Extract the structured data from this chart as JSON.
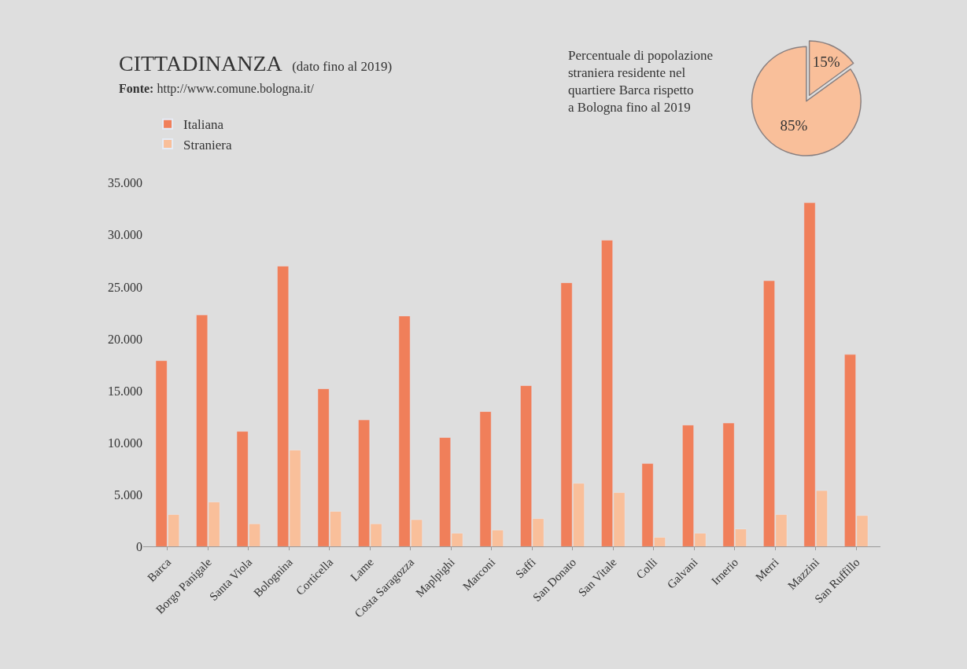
{
  "chart_data": [
    {
      "type": "bar",
      "title": "CITTADINANZA",
      "subtitle": "(dato fino al 2019)",
      "annotations": [
        "Fonte: http://www.comune.bologna.it/"
      ],
      "categories": [
        "Barca",
        "Borgo Panigale",
        "Santa Viola",
        "Bolognina",
        "Corticella",
        "Lame",
        "Costa Saragozza",
        "Maplpighi",
        "Marconi",
        "Saffi",
        "San Donato",
        "San Vitale",
        "Colli",
        "Galvani",
        "Irnerio",
        "Merri",
        "Mazzini",
        "San Ruffillo"
      ],
      "series": [
        {
          "name": "Italiana",
          "color": "#f07f5a",
          "values": [
            17900,
            22300,
            11100,
            27000,
            15200,
            12200,
            22200,
            10500,
            13000,
            15500,
            25400,
            29500,
            8000,
            11700,
            11900,
            25600,
            33100,
            18500
          ]
        },
        {
          "name": "Straniera",
          "color": "#f9bf9a",
          "values": [
            3100,
            4300,
            2200,
            9300,
            3400,
            2200,
            2600,
            1300,
            1600,
            2700,
            6100,
            5200,
            900,
            1300,
            1700,
            3100,
            5400,
            3000
          ]
        }
      ],
      "ylim": [
        0,
        35000
      ],
      "yticks": [
        0,
        {
          "value": 5000,
          "label": "5.000"
        },
        {
          "value": 10000,
          "label": "10.000"
        },
        {
          "value": 15000,
          "label": "15.000"
        },
        {
          "value": 20000,
          "label": "20.000"
        },
        {
          "value": 25000,
          "label": "25.000"
        },
        {
          "value": 30000,
          "label": "30.000"
        },
        {
          "value": 35000,
          "label": "35.000"
        }
      ],
      "grid": false,
      "legend": "top left"
    },
    {
      "type": "pie",
      "title": "Percentuale di popolazione\nstraniera residente nel\nquartiere Barca rispetto\na Bologna fino al 2019",
      "categories": [
        null,
        null
      ],
      "values": [
        15,
        85
      ],
      "colors": [
        "#f9bf9a",
        "#f9bf9a"
      ],
      "value_labels": [
        "15%",
        "85%"
      ]
    }
  ]
}
